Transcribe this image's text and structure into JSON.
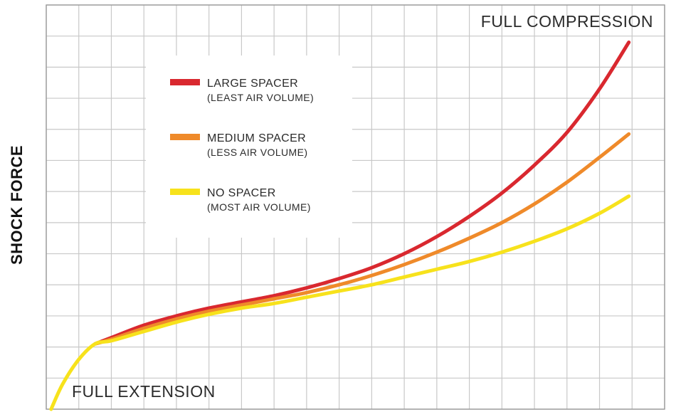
{
  "chart_data": {
    "type": "line",
    "title": "",
    "xlabel": "",
    "ylabel": "SHOCK FORCE",
    "xlim": [
      0,
      19
    ],
    "ylim": [
      0,
      13
    ],
    "grid": true,
    "legend_position": "upper-left",
    "annotations": {
      "start": "FULL EXTENSION",
      "end": "FULL COMPRESSION"
    },
    "series": [
      {
        "name": "LARGE SPACER",
        "note": "(LEAST AIR VOLUME)",
        "color": "#d9282f",
        "x": [
          1.5,
          2,
          3,
          4,
          5,
          6,
          7,
          8,
          9,
          10,
          11,
          12,
          13,
          14,
          15,
          16,
          17,
          17.9
        ],
        "y": [
          2.1,
          2.3,
          2.7,
          3.0,
          3.25,
          3.45,
          3.65,
          3.9,
          4.2,
          4.55,
          5.0,
          5.55,
          6.2,
          6.95,
          7.85,
          8.9,
          10.3,
          11.8
        ]
      },
      {
        "name": "MEDIUM SPACER",
        "note": "(LESS AIR VOLUME)",
        "color": "#ef8a2a",
        "x": [
          1.5,
          2,
          3,
          4,
          5,
          6,
          7,
          8,
          9,
          10,
          11,
          12,
          13,
          14,
          15,
          16,
          17,
          17.9
        ],
        "y": [
          2.1,
          2.25,
          2.6,
          2.9,
          3.15,
          3.35,
          3.55,
          3.75,
          4.0,
          4.3,
          4.65,
          5.05,
          5.5,
          6.0,
          6.6,
          7.3,
          8.1,
          8.85
        ]
      },
      {
        "name": "NO SPACER",
        "note": "(MOST AIR VOLUME)",
        "color": "#f7e21c",
        "x": [
          0.15,
          0.5,
          1,
          1.5,
          2,
          3,
          4,
          5,
          6,
          7,
          8,
          9,
          10,
          11,
          12,
          13,
          14,
          15,
          16,
          17,
          17.9
        ],
        "y": [
          0.0,
          0.8,
          1.6,
          2.1,
          2.2,
          2.5,
          2.8,
          3.05,
          3.25,
          3.4,
          3.6,
          3.8,
          4.0,
          4.25,
          4.5,
          4.75,
          5.05,
          5.4,
          5.8,
          6.3,
          6.85
        ]
      }
    ]
  }
}
